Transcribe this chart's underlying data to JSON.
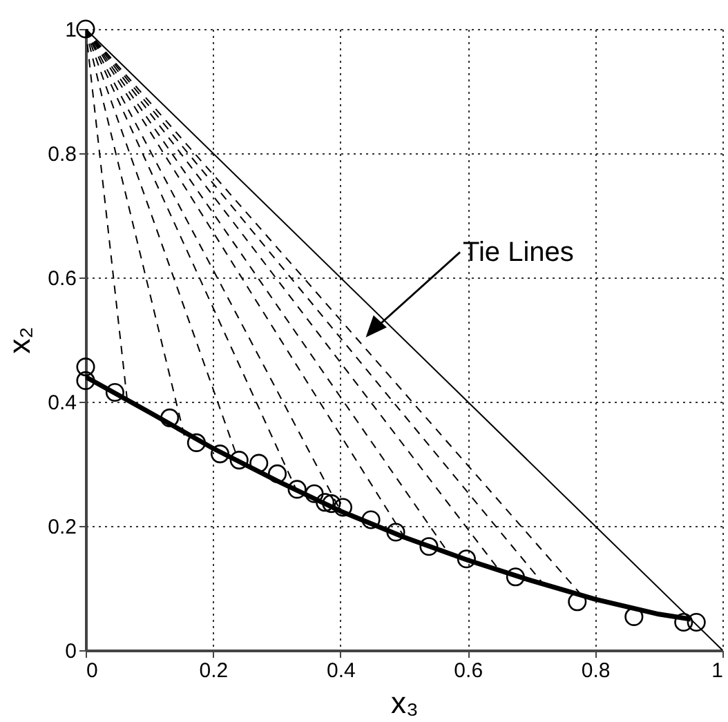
{
  "chart_data": {
    "type": "scatter",
    "xlabel": "x₃",
    "ylabel": "x₂",
    "xlim": [
      0,
      1
    ],
    "ylim": [
      0,
      1
    ],
    "xticks": [
      0,
      0.2,
      0.4,
      0.6,
      0.8,
      1
    ],
    "yticks": [
      0,
      0.2,
      0.4,
      0.6,
      0.8,
      1
    ],
    "grid": true,
    "annotations": [
      "Tie Lines"
    ],
    "series": [
      {
        "type": "line",
        "line_style": "solid",
        "color": "#000000",
        "x": [
          0,
          1
        ],
        "values": [
          1,
          0
        ]
      },
      {
        "type": "line",
        "line_style": "dashed",
        "color": "#000000",
        "x": [
          0,
          0.065
        ],
        "values": [
          1,
          0.405
        ]
      },
      {
        "type": "line",
        "line_style": "dashed",
        "color": "#000000",
        "x": [
          0,
          0.155
        ],
        "values": [
          1,
          0.345
        ]
      },
      {
        "type": "line",
        "line_style": "dashed",
        "color": "#000000",
        "x": [
          0,
          0.24
        ],
        "values": [
          1,
          0.305
        ]
      },
      {
        "type": "line",
        "line_style": "dashed",
        "color": "#000000",
        "x": [
          0,
          0.33
        ],
        "values": [
          1,
          0.26
        ]
      },
      {
        "type": "line",
        "line_style": "dashed",
        "color": "#000000",
        "x": [
          0,
          0.4
        ],
        "values": [
          1,
          0.225
        ]
      },
      {
        "type": "line",
        "line_style": "dashed",
        "color": "#000000",
        "x": [
          0,
          0.5
        ],
        "values": [
          1,
          0.183
        ]
      },
      {
        "type": "line",
        "line_style": "dashed",
        "color": "#000000",
        "x": [
          0,
          0.57
        ],
        "values": [
          1,
          0.156
        ]
      },
      {
        "type": "line",
        "line_style": "dashed",
        "color": "#000000",
        "x": [
          0,
          0.65
        ],
        "values": [
          1,
          0.128
        ]
      },
      {
        "type": "line",
        "line_style": "dashed",
        "color": "#000000",
        "x": [
          0,
          0.72
        ],
        "values": [
          1,
          0.105
        ]
      },
      {
        "type": "line",
        "line_style": "dashed",
        "color": "#000000",
        "x": [
          0,
          0.78
        ],
        "values": [
          1,
          0.087
        ]
      },
      {
        "type": "line",
        "line_style": "solid",
        "color": "#000000",
        "x": [
          0,
          0.1,
          0.2,
          0.3,
          0.4,
          0.5,
          0.6,
          0.7,
          0.8,
          0.9,
          0.95
        ],
        "values": [
          0.44,
          0.383,
          0.325,
          0.273,
          0.224,
          0.182,
          0.145,
          0.112,
          0.082,
          0.058,
          0.05
        ]
      },
      {
        "marker": "circle",
        "color": "#000000",
        "x": [
          0,
          0,
          0,
          0.046,
          0.132,
          0.174,
          0.211,
          0.241,
          0.272,
          0.301,
          0.332,
          0.359,
          0.376,
          0.386,
          0.404,
          0.448,
          0.487,
          0.539,
          0.598,
          0.675,
          0.772,
          0.861,
          0.939,
          0.959
        ],
        "values": [
          1,
          0.456,
          0.434,
          0.415,
          0.374,
          0.334,
          0.316,
          0.306,
          0.301,
          0.284,
          0.259,
          0.252,
          0.238,
          0.236,
          0.23,
          0.21,
          0.19,
          0.167,
          0.147,
          0.118,
          0.078,
          0.054,
          0.045,
          0.045
        ]
      }
    ]
  }
}
